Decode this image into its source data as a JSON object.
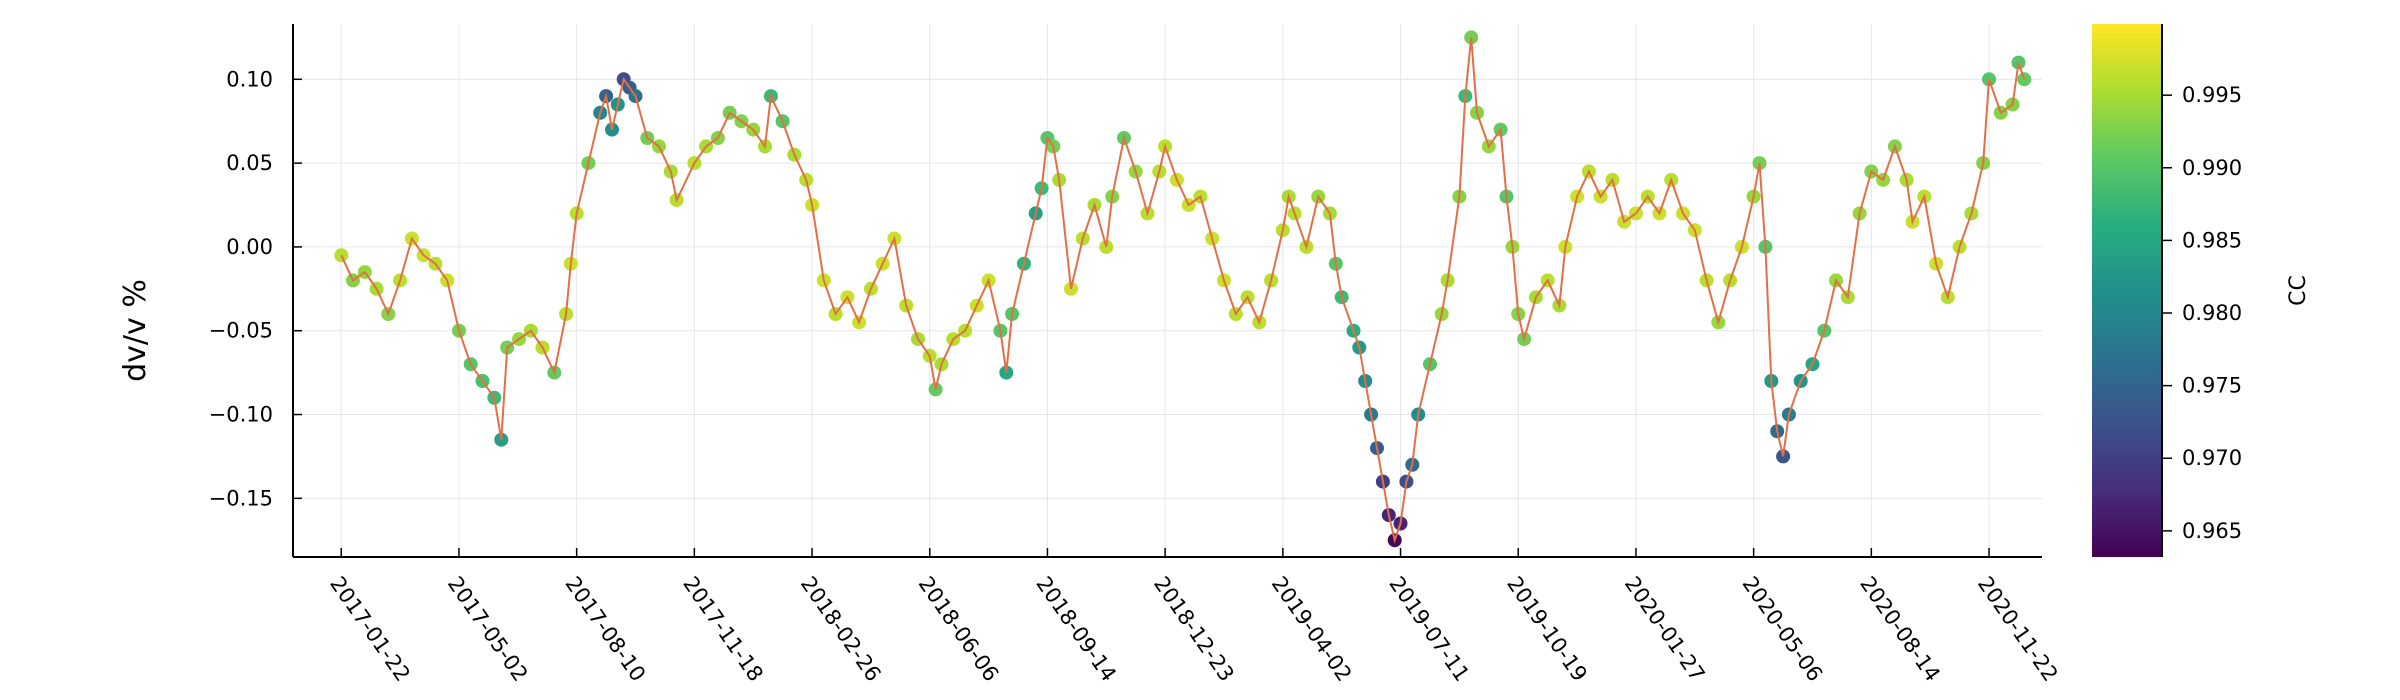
{
  "chart_data": {
    "type": "scatter",
    "title": "",
    "xlabel": "",
    "ylabel": "dv/v %",
    "x_tick_labels": [
      "2017-01-22",
      "2017-05-02",
      "2017-08-10",
      "2017-11-18",
      "2018-02-26",
      "2018-06-06",
      "2018-09-14",
      "2018-12-23",
      "2019-04-02",
      "2019-07-11",
      "2019-10-19",
      "2020-01-27",
      "2020-05-06",
      "2020-08-14",
      "2020-11-22"
    ],
    "y_tick_labels": [
      "−0.15",
      "−0.10",
      "−0.05",
      "0.00",
      "0.05",
      "0.10"
    ],
    "y_ticks": [
      -0.15,
      -0.1,
      -0.05,
      0.0,
      0.05,
      0.1
    ],
    "xlim": [
      "2016-12-12",
      "2021-01-06"
    ],
    "ylim": [
      -0.185,
      0.133
    ],
    "grid": true,
    "line_color": "#e26f46",
    "colorbar": {
      "title": "CC",
      "range": [
        0.9632,
        0.9999
      ],
      "tick_values": [
        0.965,
        0.97,
        0.975,
        0.98,
        0.985,
        0.99,
        0.995
      ],
      "tick_labels": [
        "0.965",
        "0.970",
        "0.975",
        "0.980",
        "0.985",
        "0.990",
        "0.995"
      ],
      "colormap": "viridis",
      "colors": [
        "#440154",
        "#472d7b",
        "#3b528b",
        "#2c728e",
        "#21918c",
        "#28ae80",
        "#5ec962",
        "#addc30",
        "#fde725"
      ]
    },
    "series": [
      {
        "points": [
          [
            "2017-01-22",
            -0.005,
            0.996
          ],
          [
            "2017-02-01",
            -0.02,
            0.993
          ],
          [
            "2017-02-11",
            -0.015,
            0.994
          ],
          [
            "2017-02-21",
            -0.025,
            0.995
          ],
          [
            "2017-03-03",
            -0.04,
            0.993
          ],
          [
            "2017-03-13",
            -0.02,
            0.996
          ],
          [
            "2017-03-23",
            0.005,
            0.997
          ],
          [
            "2017-04-02",
            -0.005,
            0.997
          ],
          [
            "2017-04-12",
            -0.01,
            0.996
          ],
          [
            "2017-04-22",
            -0.02,
            0.997
          ],
          [
            "2017-05-02",
            -0.05,
            0.992
          ],
          [
            "2017-05-12",
            -0.07,
            0.99
          ],
          [
            "2017-05-22",
            -0.08,
            0.989
          ],
          [
            "2017-06-01",
            -0.09,
            0.988
          ],
          [
            "2017-06-07",
            -0.115,
            0.984
          ],
          [
            "2017-06-12",
            -0.06,
            0.992
          ],
          [
            "2017-06-22",
            -0.055,
            0.994
          ],
          [
            "2017-07-02",
            -0.05,
            0.995
          ],
          [
            "2017-07-12",
            -0.06,
            0.996
          ],
          [
            "2017-07-22",
            -0.075,
            0.991
          ],
          [
            "2017-08-01",
            -0.04,
            0.996
          ],
          [
            "2017-08-05",
            -0.01,
            0.997
          ],
          [
            "2017-08-10",
            0.02,
            0.996
          ],
          [
            "2017-08-20",
            0.05,
            0.992
          ],
          [
            "2017-08-30",
            0.08,
            0.98
          ],
          [
            "2017-09-04",
            0.09,
            0.975
          ],
          [
            "2017-09-09",
            0.07,
            0.981
          ],
          [
            "2017-09-14",
            0.085,
            0.982
          ],
          [
            "2017-09-19",
            0.1,
            0.972
          ],
          [
            "2017-09-24",
            0.095,
            0.974
          ],
          [
            "2017-09-29",
            0.09,
            0.977
          ],
          [
            "2017-10-09",
            0.065,
            0.992
          ],
          [
            "2017-10-19",
            0.06,
            0.994
          ],
          [
            "2017-10-29",
            0.045,
            0.995
          ],
          [
            "2017-11-03",
            0.028,
            0.996
          ],
          [
            "2017-11-18",
            0.05,
            0.996
          ],
          [
            "2017-11-28",
            0.06,
            0.995
          ],
          [
            "2017-12-08",
            0.065,
            0.993
          ],
          [
            "2017-12-18",
            0.08,
            0.992
          ],
          [
            "2017-12-28",
            0.075,
            0.993
          ],
          [
            "2018-01-07",
            0.07,
            0.994
          ],
          [
            "2018-01-17",
            0.06,
            0.995
          ],
          [
            "2018-01-22",
            0.09,
            0.988
          ],
          [
            "2018-02-01",
            0.075,
            0.99
          ],
          [
            "2018-02-11",
            0.055,
            0.995
          ],
          [
            "2018-02-21",
            0.04,
            0.996
          ],
          [
            "2018-02-26",
            0.025,
            0.997
          ],
          [
            "2018-03-08",
            -0.02,
            0.997
          ],
          [
            "2018-03-18",
            -0.04,
            0.996
          ],
          [
            "2018-03-28",
            -0.03,
            0.997
          ],
          [
            "2018-04-07",
            -0.045,
            0.997
          ],
          [
            "2018-04-17",
            -0.025,
            0.996
          ],
          [
            "2018-04-27",
            -0.01,
            0.997
          ],
          [
            "2018-05-07",
            0.005,
            0.997
          ],
          [
            "2018-05-17",
            -0.035,
            0.996
          ],
          [
            "2018-05-27",
            -0.055,
            0.995
          ],
          [
            "2018-06-06",
            -0.065,
            0.996
          ],
          [
            "2018-06-11",
            -0.085,
            0.991
          ],
          [
            "2018-06-16",
            -0.07,
            0.995
          ],
          [
            "2018-06-26",
            -0.055,
            0.996
          ],
          [
            "2018-07-06",
            -0.05,
            0.996
          ],
          [
            "2018-07-16",
            -0.035,
            0.997
          ],
          [
            "2018-07-26",
            -0.02,
            0.997
          ],
          [
            "2018-08-05",
            -0.05,
            0.99
          ],
          [
            "2018-08-10",
            -0.075,
            0.985
          ],
          [
            "2018-08-15",
            -0.04,
            0.99
          ],
          [
            "2018-08-25",
            -0.01,
            0.987
          ],
          [
            "2018-09-04",
            0.02,
            0.984
          ],
          [
            "2018-09-09",
            0.035,
            0.988
          ],
          [
            "2018-09-14",
            0.065,
            0.99
          ],
          [
            "2018-09-19",
            0.06,
            0.992
          ],
          [
            "2018-09-24",
            0.04,
            0.995
          ],
          [
            "2018-10-04",
            -0.025,
            0.997
          ],
          [
            "2018-10-14",
            0.005,
            0.996
          ],
          [
            "2018-10-24",
            0.025,
            0.995
          ],
          [
            "2018-11-03",
            0.0,
            0.996
          ],
          [
            "2018-11-08",
            0.03,
            0.993
          ],
          [
            "2018-11-18",
            0.065,
            0.991
          ],
          [
            "2018-11-28",
            0.045,
            0.994
          ],
          [
            "2018-12-08",
            0.02,
            0.996
          ],
          [
            "2018-12-18",
            0.045,
            0.996
          ],
          [
            "2018-12-23",
            0.06,
            0.996
          ],
          [
            "2019-01-02",
            0.04,
            0.997
          ],
          [
            "2019-01-12",
            0.025,
            0.997
          ],
          [
            "2019-01-22",
            0.03,
            0.996
          ],
          [
            "2019-02-01",
            0.005,
            0.997
          ],
          [
            "2019-02-11",
            -0.02,
            0.997
          ],
          [
            "2019-02-21",
            -0.04,
            0.996
          ],
          [
            "2019-03-03",
            -0.03,
            0.996
          ],
          [
            "2019-03-13",
            -0.045,
            0.996
          ],
          [
            "2019-03-23",
            -0.02,
            0.996
          ],
          [
            "2019-04-02",
            0.01,
            0.996
          ],
          [
            "2019-04-07",
            0.03,
            0.995
          ],
          [
            "2019-04-12",
            0.02,
            0.996
          ],
          [
            "2019-04-22",
            0.0,
            0.996
          ],
          [
            "2019-05-02",
            0.03,
            0.994
          ],
          [
            "2019-05-12",
            0.02,
            0.995
          ],
          [
            "2019-05-17",
            -0.01,
            0.99
          ],
          [
            "2019-05-22",
            -0.03,
            0.988
          ],
          [
            "2019-06-01",
            -0.05,
            0.986
          ],
          [
            "2019-06-06",
            -0.06,
            0.983
          ],
          [
            "2019-06-11",
            -0.08,
            0.981
          ],
          [
            "2019-06-16",
            -0.1,
            0.978
          ],
          [
            "2019-06-21",
            -0.12,
            0.974
          ],
          [
            "2019-06-26",
            -0.14,
            0.97
          ],
          [
            "2019-07-01",
            -0.16,
            0.967
          ],
          [
            "2019-07-06",
            -0.175,
            0.964
          ],
          [
            "2019-07-11",
            -0.165,
            0.967
          ],
          [
            "2019-07-16",
            -0.14,
            0.972
          ],
          [
            "2019-07-21",
            -0.13,
            0.976
          ],
          [
            "2019-07-26",
            -0.1,
            0.981
          ],
          [
            "2019-08-05",
            -0.07,
            0.99
          ],
          [
            "2019-08-15",
            -0.04,
            0.994
          ],
          [
            "2019-08-20",
            -0.02,
            0.995
          ],
          [
            "2019-08-30",
            0.03,
            0.993
          ],
          [
            "2019-09-04",
            0.09,
            0.988
          ],
          [
            "2019-09-09",
            0.125,
            0.992
          ],
          [
            "2019-09-14",
            0.08,
            0.993
          ],
          [
            "2019-09-24",
            0.06,
            0.994
          ],
          [
            "2019-10-04",
            0.07,
            0.991
          ],
          [
            "2019-10-09",
            0.03,
            0.99
          ],
          [
            "2019-10-14",
            0.0,
            0.994
          ],
          [
            "2019-10-19",
            -0.04,
            0.993
          ],
          [
            "2019-10-24",
            -0.055,
            0.992
          ],
          [
            "2019-11-03",
            -0.03,
            0.995
          ],
          [
            "2019-11-13",
            -0.02,
            0.996
          ],
          [
            "2019-11-23",
            -0.035,
            0.995
          ],
          [
            "2019-11-28",
            0.0,
            0.997
          ],
          [
            "2019-12-08",
            0.03,
            0.997
          ],
          [
            "2019-12-18",
            0.045,
            0.996
          ],
          [
            "2019-12-28",
            0.03,
            0.997
          ],
          [
            "2020-01-07",
            0.04,
            0.996
          ],
          [
            "2020-01-17",
            0.015,
            0.997
          ],
          [
            "2020-01-27",
            0.02,
            0.997
          ],
          [
            "2020-02-06",
            0.03,
            0.996
          ],
          [
            "2020-02-16",
            0.02,
            0.997
          ],
          [
            "2020-02-26",
            0.04,
            0.996
          ],
          [
            "2020-03-07",
            0.02,
            0.997
          ],
          [
            "2020-03-17",
            0.01,
            0.997
          ],
          [
            "2020-03-27",
            -0.02,
            0.996
          ],
          [
            "2020-04-06",
            -0.045,
            0.994
          ],
          [
            "2020-04-16",
            -0.02,
            0.996
          ],
          [
            "2020-04-26",
            0.0,
            0.997
          ],
          [
            "2020-05-06",
            0.03,
            0.994
          ],
          [
            "2020-05-11",
            0.05,
            0.992
          ],
          [
            "2020-05-16",
            0.0,
            0.99
          ],
          [
            "2020-05-21",
            -0.08,
            0.983
          ],
          [
            "2020-05-26",
            -0.11,
            0.976
          ],
          [
            "2020-05-31",
            -0.125,
            0.973
          ],
          [
            "2020-06-05",
            -0.1,
            0.978
          ],
          [
            "2020-06-15",
            -0.08,
            0.982
          ],
          [
            "2020-06-25",
            -0.07,
            0.985
          ],
          [
            "2020-07-05",
            -0.05,
            0.99
          ],
          [
            "2020-07-15",
            -0.02,
            0.994
          ],
          [
            "2020-07-25",
            -0.03,
            0.995
          ],
          [
            "2020-08-04",
            0.02,
            0.994
          ],
          [
            "2020-08-14",
            0.045,
            0.993
          ],
          [
            "2020-08-24",
            0.04,
            0.994
          ],
          [
            "2020-09-03",
            0.06,
            0.993
          ],
          [
            "2020-09-13",
            0.04,
            0.995
          ],
          [
            "2020-09-18",
            0.015,
            0.997
          ],
          [
            "2020-09-28",
            0.03,
            0.996
          ],
          [
            "2020-10-08",
            -0.01,
            0.997
          ],
          [
            "2020-10-18",
            -0.03,
            0.996
          ],
          [
            "2020-10-28",
            0.0,
            0.996
          ],
          [
            "2020-11-07",
            0.02,
            0.995
          ],
          [
            "2020-11-17",
            0.05,
            0.993
          ],
          [
            "2020-11-22",
            0.1,
            0.99
          ],
          [
            "2020-12-02",
            0.08,
            0.993
          ],
          [
            "2020-12-12",
            0.085,
            0.993
          ],
          [
            "2020-12-17",
            0.11,
            0.99
          ],
          [
            "2020-12-22",
            0.1,
            0.991
          ]
        ]
      }
    ]
  }
}
